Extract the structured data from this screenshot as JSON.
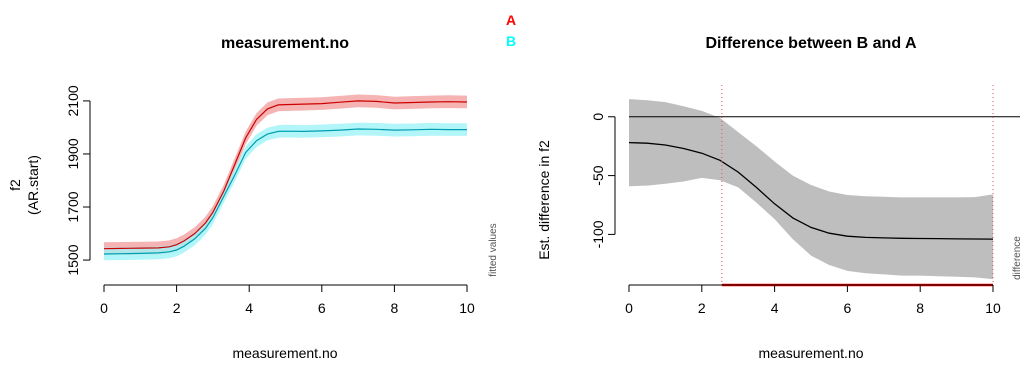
{
  "legend": [
    {
      "label": "A",
      "color": "#ff0000"
    },
    {
      "label": "B",
      "color": "#00ffff"
    }
  ],
  "chart_data": [
    {
      "type": "line",
      "title": "measurement.no",
      "xlabel": "measurement.no",
      "ylabel_line1": "f2",
      "ylabel_line2": "(AR.start)",
      "side_note": "fitted values",
      "xlim": [
        0,
        10
      ],
      "ylim": [
        1455,
        2160
      ],
      "x_ticks": [
        "0",
        "2",
        "4",
        "6",
        "8",
        "10"
      ],
      "y_ticks": [
        "1500",
        "1700",
        "1900",
        "2100"
      ],
      "x": [
        0,
        0.5,
        1,
        1.5,
        1.8,
        2,
        2.2,
        2.5,
        2.8,
        3,
        3.3,
        3.6,
        3.9,
        4.2,
        4.5,
        4.8,
        5,
        5.5,
        6,
        6.5,
        7,
        7.5,
        8,
        8.5,
        9,
        9.5,
        10
      ],
      "series": [
        {
          "name": "A",
          "color": "#cc0000",
          "band_color": "#f4a0a0",
          "values": [
            1543,
            1544,
            1545,
            1546,
            1550,
            1558,
            1572,
            1600,
            1640,
            1680,
            1760,
            1860,
            1960,
            2030,
            2070,
            2085,
            2086,
            2088,
            2090,
            2095,
            2100,
            2098,
            2092,
            2094,
            2096,
            2097,
            2096
          ],
          "band": 24
        },
        {
          "name": "B",
          "color": "#009fb0",
          "band_color": "#a0f4f8",
          "values": [
            1523,
            1524,
            1525,
            1527,
            1531,
            1538,
            1552,
            1580,
            1620,
            1660,
            1740,
            1820,
            1905,
            1950,
            1975,
            1985,
            1986,
            1985,
            1987,
            1990,
            1994,
            1993,
            1990,
            1991,
            1993,
            1992,
            1992
          ],
          "band": 24
        }
      ]
    },
    {
      "type": "line",
      "title": "Difference between B and A",
      "xlabel": "measurement.no",
      "ylabel": "Est. difference in f2",
      "side_note": "difference",
      "xlim": [
        0,
        10
      ],
      "ylim": [
        -143,
        27
      ],
      "x_ticks": [
        "0",
        "2",
        "4",
        "6",
        "8",
        "10"
      ],
      "y_ticks": [
        "0",
        "-50",
        "-100"
      ],
      "reference_y": 0,
      "significance_bounds": [
        2.55,
        10
      ],
      "x": [
        0,
        0.5,
        1,
        1.5,
        2,
        2.5,
        3,
        3.5,
        4,
        4.5,
        5,
        5.5,
        6,
        6.5,
        7,
        7.5,
        8,
        8.5,
        9,
        9.5,
        10
      ],
      "series": [
        {
          "name": "difference",
          "color": "#000000",
          "band_color": "#bebebe",
          "values": [
            -22,
            -22.5,
            -24,
            -27,
            -31,
            -37,
            -47,
            -60,
            -74,
            -86,
            -94,
            -99,
            -101.5,
            -102.5,
            -103,
            -103.3,
            -103.5,
            -103.6,
            -103.8,
            -103.9,
            -104
          ],
          "upper": [
            15,
            14,
            12.5,
            9,
            5,
            -1,
            -13,
            -25,
            -38,
            -50,
            -58,
            -63.5,
            -66.5,
            -67.5,
            -68,
            -68.5,
            -68.5,
            -68.5,
            -68.5,
            -68.3,
            -66
          ],
          "lower": [
            -59,
            -58.5,
            -57,
            -55,
            -52,
            -54,
            -60,
            -73,
            -87,
            -104,
            -118,
            -126,
            -131,
            -133,
            -134,
            -135,
            -135,
            -135.5,
            -136,
            -136.5,
            -138
          ]
        }
      ]
    }
  ]
}
